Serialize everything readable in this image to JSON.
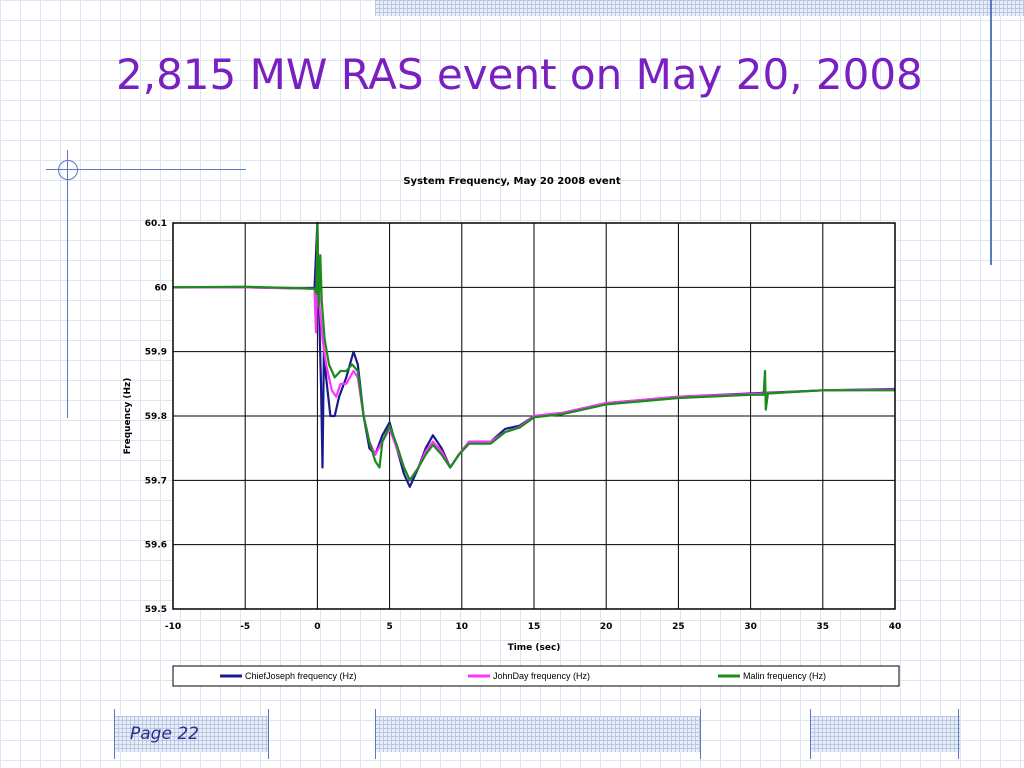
{
  "slide": {
    "title": "2,815 MW RAS event on May 20, 2008",
    "page_label": "Page 22"
  },
  "colors": {
    "title": "#7a1fc0",
    "decor_lines": "#5b78c2",
    "series_chief_joseph": "#1a1a8c",
    "series_john_day": "#ff33ff",
    "series_malin": "#1a8c1a"
  },
  "chart_data": {
    "type": "line",
    "title": "System Frequency, May 20 2008 event",
    "xlabel": "Time (sec)",
    "ylabel": "Frequency (Hz)",
    "xlim": [
      -10,
      40
    ],
    "ylim": [
      59.5,
      60.1
    ],
    "x_ticks": [
      -10,
      -5,
      0,
      5,
      10,
      15,
      20,
      25,
      30,
      35,
      40
    ],
    "y_ticks": [
      59.5,
      59.6,
      59.7,
      59.8,
      59.9,
      60.0,
      60.1
    ],
    "x_tick_labels": [
      "-10",
      "-5",
      "0",
      "5",
      "10",
      "15",
      "20",
      "25",
      "30",
      "35",
      "40"
    ],
    "y_tick_labels": [
      "59.5",
      "59.6",
      "59.7",
      "59.8",
      "59.9",
      "60",
      "60.1"
    ],
    "grid": true,
    "legend_position": "bottom",
    "series": [
      {
        "name": "ChiefJoseph frequency (Hz)",
        "color": "#1a1a8c",
        "points": [
          [
            -10,
            60.0
          ],
          [
            -5,
            60.0
          ],
          [
            -0.2,
            59.998
          ],
          [
            0,
            60.1
          ],
          [
            0.1,
            59.98
          ],
          [
            0.25,
            59.85
          ],
          [
            0.35,
            59.72
          ],
          [
            0.45,
            59.9
          ],
          [
            0.6,
            59.86
          ],
          [
            0.9,
            59.8
          ],
          [
            1.2,
            59.8
          ],
          [
            1.5,
            59.83
          ],
          [
            2.0,
            59.86
          ],
          [
            2.5,
            59.9
          ],
          [
            2.8,
            59.88
          ],
          [
            3.2,
            59.8
          ],
          [
            3.6,
            59.75
          ],
          [
            4.0,
            59.74
          ],
          [
            4.5,
            59.77
          ],
          [
            5.0,
            59.79
          ],
          [
            5.5,
            59.75
          ],
          [
            6.0,
            59.71
          ],
          [
            6.4,
            59.69
          ],
          [
            7.0,
            59.72
          ],
          [
            7.5,
            59.75
          ],
          [
            8.0,
            59.77
          ],
          [
            8.6,
            59.75
          ],
          [
            9.2,
            59.72
          ],
          [
            9.8,
            59.74
          ],
          [
            10.5,
            59.76
          ],
          [
            12,
            59.76
          ],
          [
            13,
            59.78
          ],
          [
            14,
            59.785
          ],
          [
            15,
            59.8
          ],
          [
            17,
            59.805
          ],
          [
            20,
            59.82
          ],
          [
            25,
            59.83
          ],
          [
            30,
            59.835
          ],
          [
            31,
            59.836
          ],
          [
            35,
            59.84
          ],
          [
            40,
            59.842
          ]
        ]
      },
      {
        "name": "JohnDay frequency (Hz)",
        "color": "#ff33ff",
        "points": [
          [
            -10,
            60.0
          ],
          [
            -5,
            60.0
          ],
          [
            -0.2,
            59.998
          ],
          [
            -0.1,
            59.93
          ],
          [
            0,
            60.08
          ],
          [
            0.15,
            59.97
          ],
          [
            0.35,
            59.92
          ],
          [
            0.6,
            59.88
          ],
          [
            1.0,
            59.84
          ],
          [
            1.3,
            59.83
          ],
          [
            1.6,
            59.85
          ],
          [
            2.0,
            59.85
          ],
          [
            2.5,
            59.87
          ],
          [
            2.8,
            59.86
          ],
          [
            3.2,
            59.8
          ],
          [
            3.6,
            59.76
          ],
          [
            4.0,
            59.74
          ],
          [
            4.5,
            59.76
          ],
          [
            5.0,
            59.78
          ],
          [
            5.5,
            59.75
          ],
          [
            6.0,
            59.72
          ],
          [
            6.4,
            59.7
          ],
          [
            7.0,
            59.72
          ],
          [
            7.5,
            59.745
          ],
          [
            8.0,
            59.76
          ],
          [
            8.6,
            59.745
          ],
          [
            9.2,
            59.72
          ],
          [
            9.8,
            59.74
          ],
          [
            10.5,
            59.76
          ],
          [
            12,
            59.76
          ],
          [
            13,
            59.775
          ],
          [
            14,
            59.783
          ],
          [
            15,
            59.8
          ],
          [
            17,
            59.805
          ],
          [
            20,
            59.82
          ],
          [
            25,
            59.83
          ],
          [
            30,
            59.834
          ],
          [
            35,
            59.84
          ],
          [
            40,
            59.841
          ]
        ]
      },
      {
        "name": "Malin frequency (Hz)",
        "color": "#1a8c1a",
        "points": [
          [
            -10,
            60.0
          ],
          [
            -5,
            60.001
          ],
          [
            -0.2,
            59.998
          ],
          [
            -0.05,
            59.99
          ],
          [
            0,
            60.1
          ],
          [
            0.08,
            59.97
          ],
          [
            0.2,
            60.05
          ],
          [
            0.3,
            59.98
          ],
          [
            0.5,
            59.92
          ],
          [
            0.8,
            59.88
          ],
          [
            1.2,
            59.86
          ],
          [
            1.6,
            59.87
          ],
          [
            2.0,
            59.87
          ],
          [
            2.4,
            59.88
          ],
          [
            2.8,
            59.87
          ],
          [
            3.2,
            59.8
          ],
          [
            3.6,
            59.76
          ],
          [
            4.0,
            59.73
          ],
          [
            4.3,
            59.72
          ],
          [
            4.5,
            59.76
          ],
          [
            5.0,
            59.785
          ],
          [
            5.5,
            59.755
          ],
          [
            6.0,
            59.72
          ],
          [
            6.4,
            59.7
          ],
          [
            7.0,
            59.72
          ],
          [
            7.5,
            59.74
          ],
          [
            8.0,
            59.755
          ],
          [
            8.6,
            59.74
          ],
          [
            9.2,
            59.72
          ],
          [
            9.8,
            59.74
          ],
          [
            10.5,
            59.757
          ],
          [
            12,
            59.757
          ],
          [
            13,
            59.775
          ],
          [
            14,
            59.782
          ],
          [
            15,
            59.798
          ],
          [
            17,
            59.803
          ],
          [
            20,
            59.818
          ],
          [
            25,
            59.828
          ],
          [
            30,
            59.833
          ],
          [
            30.9,
            59.833
          ],
          [
            31,
            59.87
          ],
          [
            31.05,
            59.81
          ],
          [
            31.2,
            59.835
          ],
          [
            35,
            59.84
          ],
          [
            40,
            59.84
          ]
        ]
      }
    ]
  }
}
